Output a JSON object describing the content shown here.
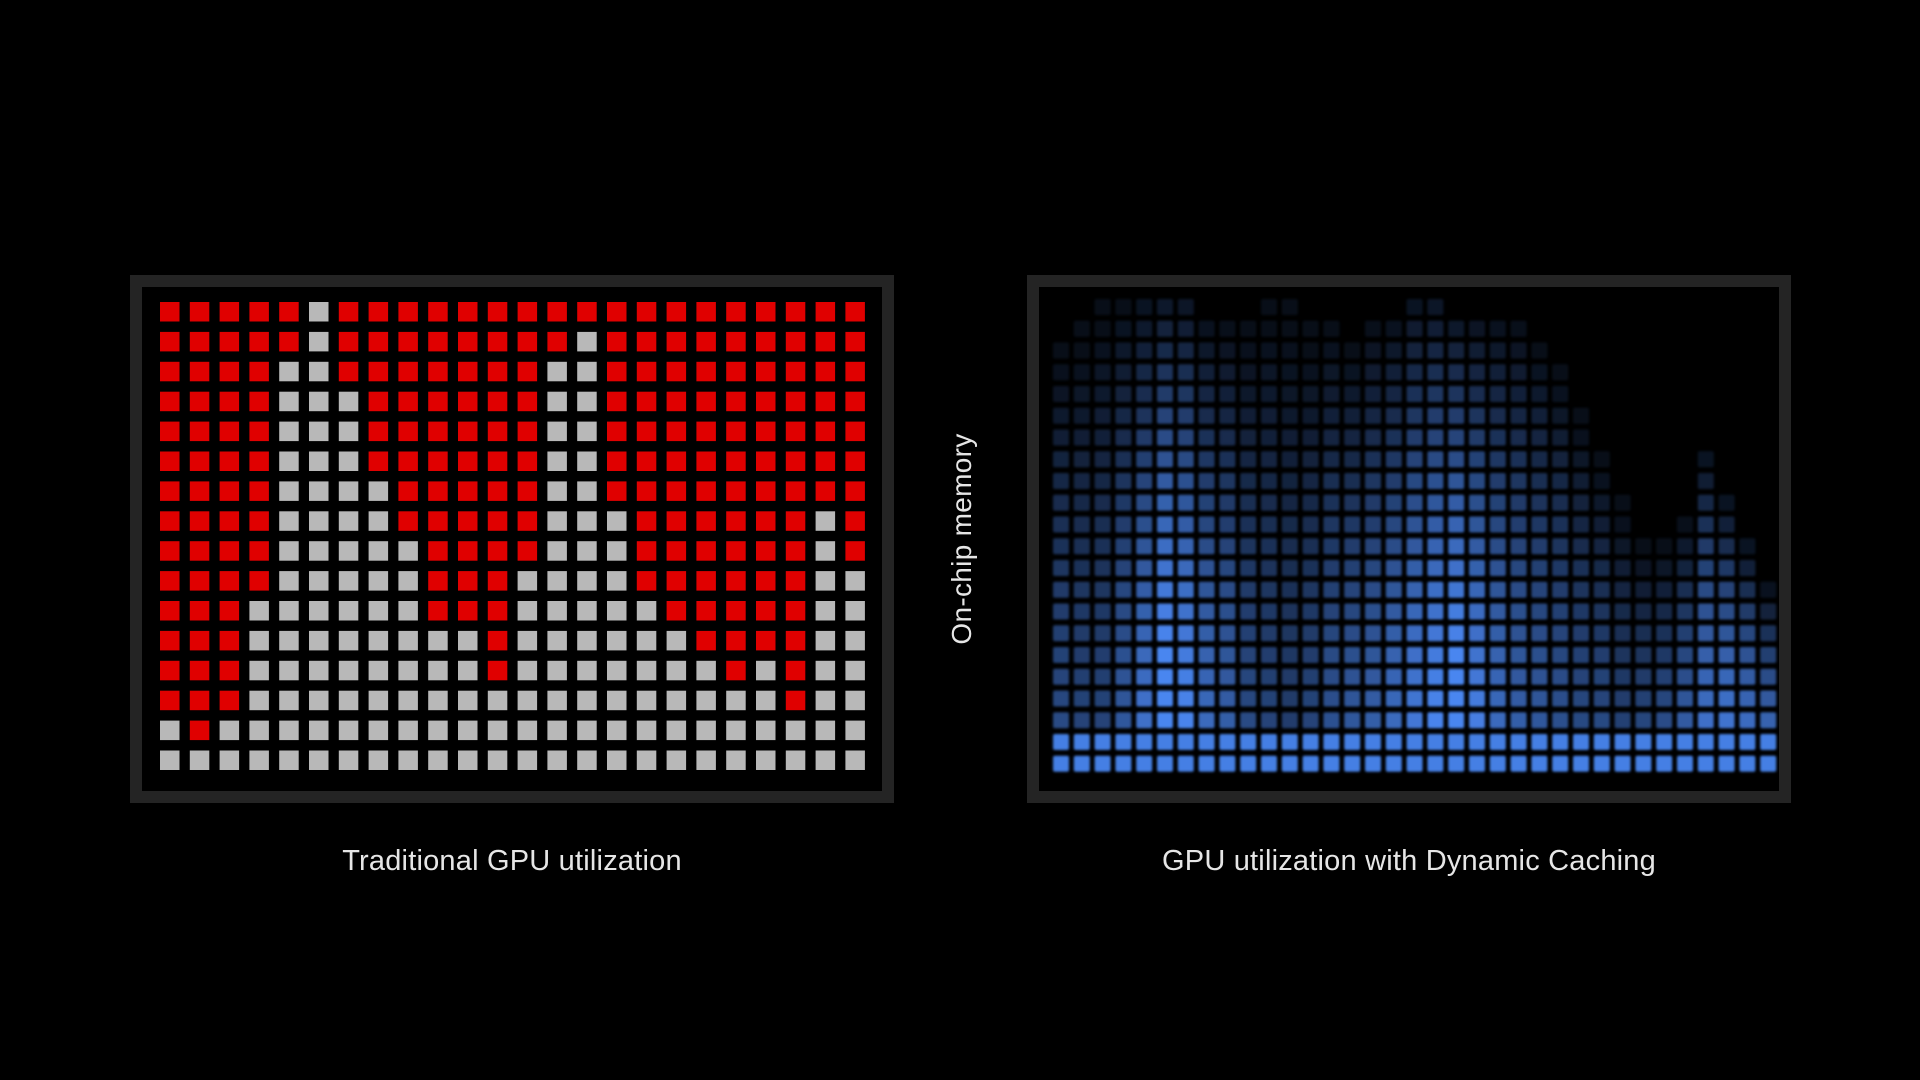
{
  "left_panel": {
    "caption": "Traditional GPU utilization",
    "colors": {
      "used": "#e00000",
      "free": "#b8b8b8"
    },
    "grid": [
      "RRRRRFRRRRRRRRRRRRRRRRRR",
      "RRRRRFRRRRRRRRFRRRRRRRRR",
      "RRRRFFRRRRRRRFFRRRRRRRRR",
      "RRRRFFFRRRRRRFFRRRRRRRRR",
      "RRRRFFFRRRRRRFFRRRRRRRRR",
      "RRRRFFFRRRRRRFFRRRRRRRRR",
      "RRRRFFFFRRRRRFFRRRRRRRRR",
      "RRRRFFFFRRRRRFFFRRRRRRFR",
      "RRRRFFFFFRRRRFFFRRRRRRFR",
      "RRRRFFFFFRRRFFFFRRRRRRFF",
      "RRRFFFFFFRRRFFFFFRRRRRFF",
      "RRRFFFFFFFFRFFFFFFRRRRFF",
      "RRRFFFFFFFFRFFFFFFFRFRFF",
      "RRRFFFFFFFFFFFFFFFFFFRFF",
      "FRFFFFFFFFFFFFFFFFFFFFFF",
      "FFFFFFFFFFFFFFFFFFFFFFFF"
    ]
  },
  "right_panel": {
    "caption": "GPU utilization with Dynamic Caching",
    "colors": {
      "base": "#4a86f0"
    },
    "rows": 22,
    "column_heights": [
      [
        20,
        0.45
      ],
      [
        21,
        0.4
      ],
      [
        22,
        0.4
      ],
      [
        22,
        0.55
      ],
      [
        22,
        0.75
      ],
      [
        22,
        1.0
      ],
      [
        22,
        0.9
      ],
      [
        21,
        0.7
      ],
      [
        21,
        0.6
      ],
      [
        21,
        0.45
      ],
      [
        22,
        0.4
      ],
      [
        22,
        0.35
      ],
      [
        21,
        0.4
      ],
      [
        21,
        0.5
      ],
      [
        20,
        0.55
      ],
      [
        21,
        0.6
      ],
      [
        21,
        0.7
      ],
      [
        22,
        0.8
      ],
      [
        22,
        0.9
      ],
      [
        21,
        1.0
      ],
      [
        21,
        0.85
      ],
      [
        21,
        0.7
      ],
      [
        21,
        0.6
      ],
      [
        20,
        0.55
      ],
      [
        19,
        0.5
      ],
      [
        17,
        0.45
      ],
      [
        15,
        0.45
      ],
      [
        13,
        0.4
      ],
      [
        11,
        0.45
      ],
      [
        11,
        0.5
      ],
      [
        12,
        0.6
      ],
      [
        15,
        0.75
      ],
      [
        13,
        0.8
      ],
      [
        11,
        0.75
      ],
      [
        9,
        0.7
      ]
    ]
  },
  "memory_label": "On-chip memory"
}
